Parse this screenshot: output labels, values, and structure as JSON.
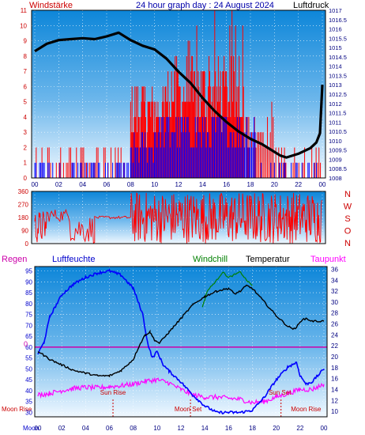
{
  "header": {
    "left_label": "Windstärke",
    "title": "24 hour graph day : 24 August 2024",
    "right_label": "Luftdruck"
  },
  "bottom_header": {
    "regen": "Regen",
    "luftfeuchte": "Luftfeuchte",
    "windchill": "Windchill",
    "temperatur": "Temperatur",
    "taupunkt": "Taupunkt"
  },
  "colors": {
    "wind": "#ff0000",
    "gust": "#0000ff",
    "pressure": "#000000",
    "humidity": "#0000ff",
    "windchill": "#008000",
    "temperature": "#000000",
    "dewpoint": "#ff00ff",
    "rain": "#cc00aa",
    "label_blue": "#0000cc",
    "label_red": "#cc0000"
  },
  "chart_data": [
    {
      "type": "line",
      "name": "wind_pressure",
      "x_ticks": [
        "00",
        "02",
        "04",
        "06",
        "08",
        "10",
        "12",
        "14",
        "16",
        "18",
        "20",
        "22",
        "00"
      ],
      "y_left_ticks": [
        "0",
        "1",
        "2",
        "3",
        "4",
        "5",
        "6",
        "7",
        "8",
        "9",
        "10",
        "11"
      ],
      "y_left_range": [
        0,
        11
      ],
      "y_right_ticks": [
        "1008",
        "1008.5",
        "1009",
        "1009.5",
        "1010",
        "1010.5",
        "1011",
        "1011.5",
        "1012",
        "1012.5",
        "1013",
        "1013.5",
        "1014",
        "1014.5",
        "1015",
        "1015.5",
        "1016",
        "1016.5",
        "1017"
      ],
      "y_right_range": [
        1008,
        1017
      ],
      "pressure": {
        "x": [
          0,
          1,
          2,
          3,
          4,
          5,
          6,
          7,
          8,
          9,
          10,
          11,
          12,
          13,
          14,
          15,
          16,
          17,
          18,
          19,
          20,
          20.5,
          21,
          22,
          23,
          23.5,
          23.8,
          24
        ],
        "y": [
          1014.8,
          1015.2,
          1015.4,
          1015.45,
          1015.5,
          1015.45,
          1015.6,
          1015.8,
          1015.4,
          1015.1,
          1014.9,
          1014.4,
          1013.7,
          1013.1,
          1012.3,
          1011.6,
          1011.0,
          1010.5,
          1010.1,
          1009.8,
          1009.4,
          1009.2,
          1009.1,
          1009.3,
          1009.6,
          1009.9,
          1010.4,
          1013.0
        ]
      },
      "wind_segments": [
        {
          "from": 0.0,
          "to": 8.0,
          "level": 2
        },
        {
          "from": 8.0,
          "to": 11.0,
          "level": 4
        },
        {
          "from": 11.0,
          "to": 17.5,
          "level": 5
        },
        {
          "from": 17.5,
          "to": 20.0,
          "level": 3
        },
        {
          "from": 20.0,
          "to": 24.0,
          "level": 2
        }
      ],
      "wind_max": 11,
      "gust_segments": [
        {
          "from": 0.0,
          "to": 8.0,
          "level": 1
        },
        {
          "from": 8.0,
          "to": 10.0,
          "level": 2
        },
        {
          "from": 10.0,
          "to": 18.5,
          "level": 3
        },
        {
          "from": 18.5,
          "to": 24.0,
          "level": 1
        }
      ]
    },
    {
      "type": "scatter",
      "name": "wind_direction",
      "y_ticks": [
        "0",
        "90",
        "180",
        "270",
        "360"
      ],
      "y_range": [
        0,
        360
      ],
      "right_labels": [
        "N",
        "W",
        "S",
        "O",
        "N"
      ],
      "segments": [
        {
          "from": 0.0,
          "to": 1.0,
          "low": 0,
          "high": 230
        },
        {
          "from": 1.0,
          "to": 3.0,
          "low": 150,
          "high": 240
        },
        {
          "from": 3.0,
          "to": 5.0,
          "low": 0,
          "high": 200
        },
        {
          "from": 5.0,
          "to": 8.0,
          "low": 170,
          "high": 190
        },
        {
          "from": 8.0,
          "to": 24.0,
          "low": 0,
          "high": 360
        }
      ]
    },
    {
      "type": "line",
      "name": "temp_humidity",
      "y_left_ticks": [
        "30",
        "35",
        "40",
        "45",
        "50",
        "55",
        "60",
        "65",
        "70",
        "75",
        "80",
        "85",
        "90",
        "95"
      ],
      "y_left_range": [
        28,
        97
      ],
      "y_right_ticks": [
        "10",
        "12",
        "14",
        "16",
        "18",
        "20",
        "22",
        "24",
        "26",
        "28",
        "30",
        "32",
        "34",
        "36"
      ],
      "y_right_range": [
        9,
        36.5
      ],
      "rain_label": "0",
      "rain_level": 60,
      "x_ticks": [
        "00",
        "02",
        "04",
        "06",
        "08",
        "10",
        "12",
        "14",
        "16",
        "18",
        "20",
        "22",
        "00"
      ],
      "humidity": {
        "x": [
          0,
          0.5,
          1,
          2,
          3,
          4,
          5,
          6,
          7,
          8,
          8.8,
          9.2,
          9.6,
          10,
          10.5,
          11,
          12,
          13,
          14,
          15,
          16,
          17,
          18,
          19,
          20,
          21,
          21.7,
          22,
          22.5,
          23,
          23.5,
          24
        ],
        "y": [
          57,
          62,
          74,
          84,
          89,
          92,
          94,
          95,
          93,
          87,
          75,
          62,
          55,
          58,
          52,
          49,
          44,
          38,
          33,
          30,
          30,
          30,
          31,
          37,
          45,
          51,
          53,
          47,
          43,
          44,
          47,
          50
        ]
      },
      "windchill": {
        "x": [
          13.8,
          14.2,
          15,
          15.5,
          16,
          16.5,
          17,
          17.5,
          18
        ],
        "y": [
          29,
          32,
          34,
          35.5,
          34.5,
          35,
          35.5,
          34,
          33
        ]
      },
      "temperature": {
        "x": [
          0,
          1,
          2,
          3,
          4,
          5,
          6,
          7,
          8,
          8.5,
          9,
          9.4,
          9.8,
          10.2,
          11,
          12,
          13,
          14,
          15,
          16,
          16.5,
          17,
          17.5,
          18,
          19,
          20,
          21,
          21.6,
          22,
          22.5,
          23,
          23.5,
          24
        ],
        "y": [
          21,
          19.5,
          18.5,
          17.5,
          17,
          16.5,
          16.5,
          17.5,
          19.5,
          22,
          24,
          24.5,
          23,
          22.5,
          24.5,
          27,
          29.5,
          31,
          32,
          32.5,
          31.5,
          32,
          33,
          32.5,
          30,
          27.5,
          25.5,
          25,
          26.5,
          27,
          26.5,
          26.5,
          26.5
        ]
      },
      "dewpoint": {
        "x": [
          0,
          1,
          2,
          3,
          4,
          5,
          6,
          7,
          8,
          9,
          10,
          11,
          12,
          13,
          14,
          15,
          16,
          17,
          18,
          19,
          20,
          21,
          22,
          23,
          24
        ],
        "y": [
          13,
          13.3,
          13.8,
          14.2,
          14.4,
          14.3,
          14.5,
          14.7,
          15.0,
          15.5,
          15.8,
          15.2,
          14.0,
          13.0,
          12.6,
          12.6,
          12.4,
          12.2,
          11.6,
          11.8,
          12.6,
          13.3,
          14.0,
          14.0,
          15.0
        ]
      },
      "annotations": {
        "moon_rise_left": "Moon Rise",
        "sun_rise": "Sun Rise",
        "moon_set": "Moon Set",
        "sun_set": "Sun Set",
        "moon_rise_right": "Moon Rise",
        "moon_bottom": "Moon"
      }
    }
  ]
}
